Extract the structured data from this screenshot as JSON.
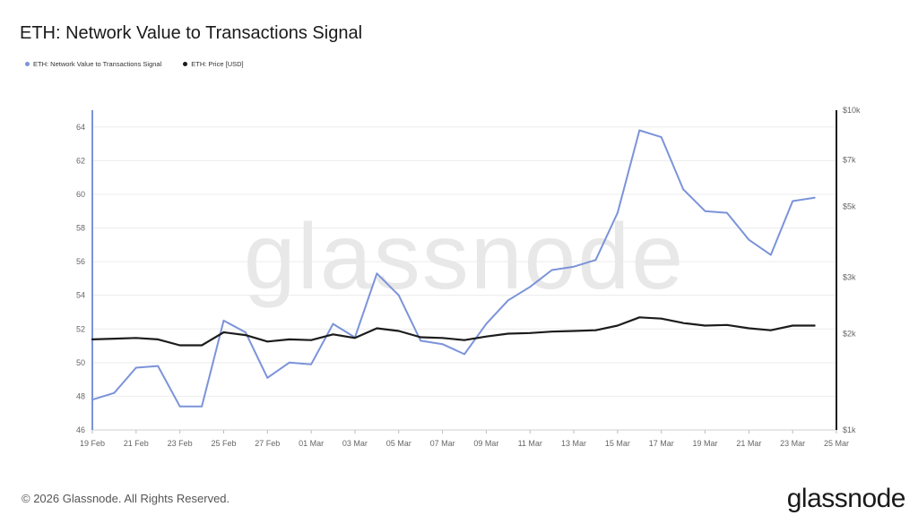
{
  "title": "ETH: Network Value to Transactions Signal",
  "footer": {
    "copyright": "© 2026 Glassnode. All Rights Reserved.",
    "logo": "glassnode"
  },
  "watermark": "glassnode",
  "chart_data": {
    "type": "line",
    "title": "ETH: Network Value to Transactions Signal",
    "legend_position": "top-left",
    "x": [
      "19 Feb",
      "20 Feb",
      "21 Feb",
      "22 Feb",
      "23 Feb",
      "24 Feb",
      "25 Feb",
      "26 Feb",
      "27 Feb",
      "28 Feb",
      "01 Mar",
      "02 Mar",
      "03 Mar",
      "04 Mar",
      "05 Mar",
      "06 Mar",
      "07 Mar",
      "08 Mar",
      "09 Mar",
      "10 Mar",
      "11 Mar",
      "12 Mar",
      "13 Mar",
      "14 Mar",
      "15 Mar",
      "16 Mar",
      "17 Mar",
      "18 Mar",
      "19 Mar",
      "20 Mar",
      "21 Mar",
      "22 Mar",
      "23 Mar",
      "24 Mar"
    ],
    "x_tick_labels": [
      "19 Feb",
      "21 Feb",
      "23 Feb",
      "25 Feb",
      "27 Feb",
      "01 Mar",
      "03 Mar",
      "05 Mar",
      "07 Mar",
      "09 Mar",
      "11 Mar",
      "13 Mar",
      "15 Mar",
      "17 Mar",
      "19 Mar",
      "21 Mar",
      "23 Mar",
      "25 Mar"
    ],
    "y_left": {
      "range": [
        46,
        65
      ],
      "ticks": [
        46,
        48,
        50,
        52,
        54,
        56,
        58,
        60,
        62,
        64
      ]
    },
    "y_right": {
      "scale": "log",
      "range": [
        1000,
        10000
      ],
      "tick_values": [
        1000,
        2000,
        3000,
        5000,
        7000,
        10000
      ],
      "tick_labels": [
        "$1k",
        "$2k",
        "$3k",
        "$5k",
        "$7k",
        "$10k"
      ]
    },
    "grid": true,
    "series": [
      {
        "name": "ETH: Network Value to Transactions Signal",
        "axis": "left",
        "color": "#7b93d9",
        "values": [
          47.8,
          48.2,
          49.7,
          49.8,
          47.4,
          47.4,
          52.5,
          51.8,
          49.1,
          50.0,
          49.9,
          52.3,
          51.5,
          55.3,
          54.0,
          51.3,
          51.1,
          50.5,
          52.3,
          53.7,
          54.5,
          55.5,
          55.7,
          56.1,
          58.9,
          63.8,
          63.4,
          60.3,
          59.0,
          58.9,
          57.3,
          56.4,
          59.6,
          59.8
        ]
      },
      {
        "name": "ETH: Price [USD]",
        "axis": "right",
        "color": "#1c1c1c",
        "values": [
          1920,
          1930,
          1940,
          1920,
          1840,
          1840,
          2020,
          1980,
          1890,
          1920,
          1910,
          1990,
          1940,
          2080,
          2040,
          1950,
          1940,
          1910,
          1960,
          2000,
          2010,
          2030,
          2040,
          2050,
          2120,
          2250,
          2230,
          2160,
          2120,
          2130,
          2080,
          2050,
          2120,
          2120
        ]
      }
    ]
  }
}
